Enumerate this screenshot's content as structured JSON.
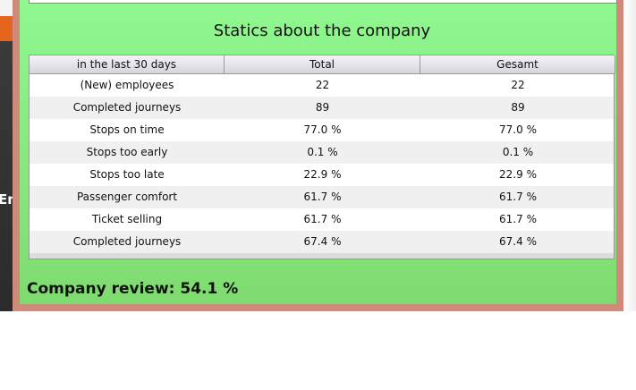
{
  "side_text": "Em",
  "window": {
    "title": "Statics about the company",
    "table": {
      "columns": [
        "in the last 30 days",
        "Total",
        "Gesamt"
      ],
      "rows": [
        [
          "(New) employees",
          "22",
          "22"
        ],
        [
          "Completed journeys",
          "89",
          "89"
        ],
        [
          "Stops on time",
          "77.0 %",
          "77.0 %"
        ],
        [
          "Stops too early",
          "0.1 %",
          "0.1 %"
        ],
        [
          "Stops too late",
          "22.9 %",
          "22.9 %"
        ],
        [
          "Passenger comfort",
          "61.7 %",
          "61.7 %"
        ],
        [
          "Ticket selling",
          "61.7 %",
          "61.7 %"
        ],
        [
          "Completed journeys",
          "67.4 %",
          "67.4 %"
        ]
      ]
    },
    "review": "Company review: 54.1 %"
  }
}
